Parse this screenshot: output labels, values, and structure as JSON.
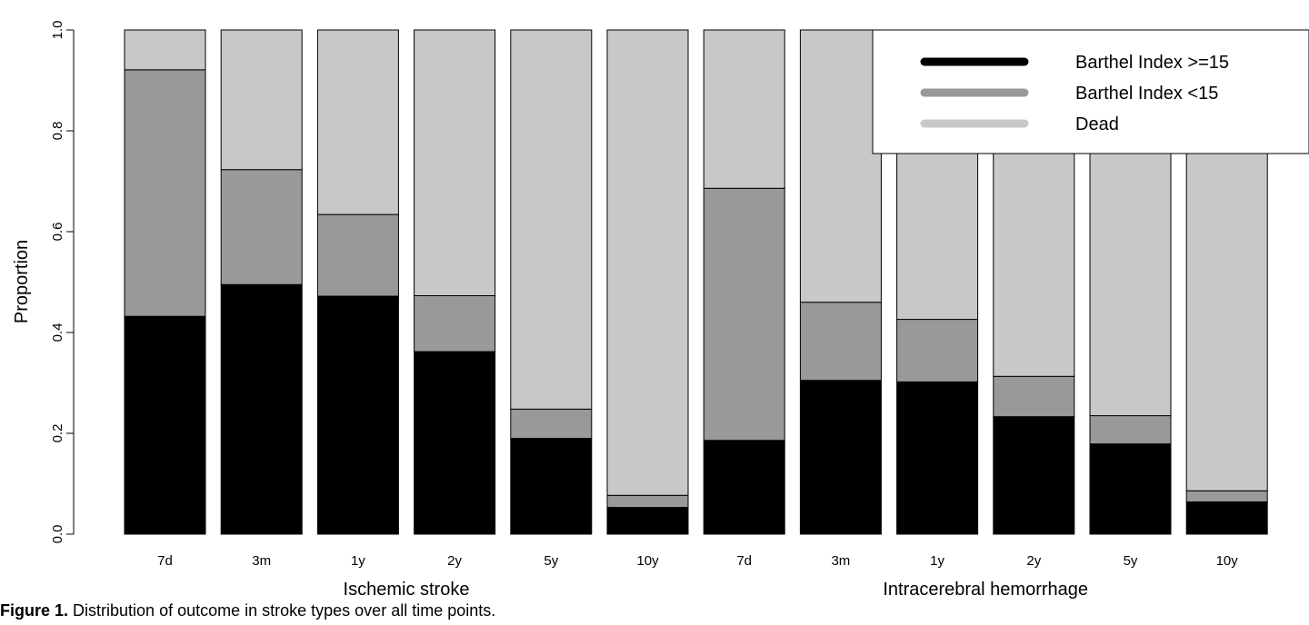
{
  "chart_data": {
    "type": "bar",
    "stacked": true,
    "ylabel": "Proportion",
    "xlabel": "",
    "ylim": [
      0,
      1
    ],
    "yticks": [
      "0.0",
      "0.2",
      "0.4",
      "0.6",
      "0.8",
      "1.0"
    ],
    "grid": false,
    "legend_position": "top-right",
    "groups": [
      {
        "label": "Ischemic stroke",
        "categories": [
          "7d",
          "3m",
          "1y",
          "2y",
          "5y",
          "10y"
        ]
      },
      {
        "label": "Intracerebral hemorrhage",
        "categories": [
          "7d",
          "3m",
          "1y",
          "2y",
          "5y",
          "10y"
        ]
      }
    ],
    "categories": [
      "7d",
      "3m",
      "1y",
      "2y",
      "5y",
      "10y",
      "7d",
      "3m",
      "1y",
      "2y",
      "5y",
      "10y"
    ],
    "series": [
      {
        "name": "Barthel Index >=15",
        "color": "#000000",
        "values": [
          0.432,
          0.495,
          0.472,
          0.362,
          0.19,
          0.053,
          0.186,
          0.305,
          0.302,
          0.233,
          0.179,
          0.064
        ]
      },
      {
        "name": "Barthel Index <15",
        "color": "#999999",
        "values": [
          0.489,
          0.228,
          0.162,
          0.111,
          0.058,
          0.024,
          0.5,
          0.155,
          0.124,
          0.08,
          0.056,
          0.022
        ]
      },
      {
        "name": "Dead",
        "color": "#c8c8c8",
        "values": [
          0.079,
          0.277,
          0.366,
          0.527,
          0.752,
          0.923,
          0.314,
          0.54,
          0.574,
          0.687,
          0.765,
          0.914
        ]
      }
    ]
  },
  "caption": {
    "lead": "Figure 1.",
    "text": "Distribution of outcome in stroke types over all time points."
  }
}
